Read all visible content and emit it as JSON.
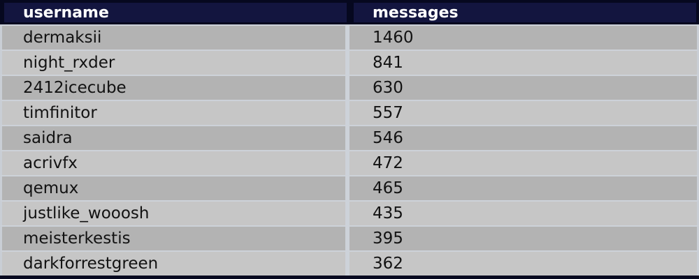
{
  "table": {
    "columns": [
      "username",
      "messages"
    ],
    "rows": [
      {
        "username": "dermaksii",
        "messages": "1460"
      },
      {
        "username": "night_rxder",
        "messages": "841"
      },
      {
        "username": "2412icecube",
        "messages": "630"
      },
      {
        "username": "timfinitor",
        "messages": "557"
      },
      {
        "username": "saidra",
        "messages": "546"
      },
      {
        "username": "acrivfx",
        "messages": "472"
      },
      {
        "username": "qemux",
        "messages": "465"
      },
      {
        "username": "justlike_wooosh",
        "messages": "435"
      },
      {
        "username": "meisterkestis",
        "messages": "395"
      },
      {
        "username": "darkforrestgreen",
        "messages": "362"
      }
    ]
  },
  "colors": {
    "header_bg": "#13153f",
    "header_border": "#06081f",
    "header_text": "#ffffff",
    "row_dark": "#b3b3b3",
    "row_light": "#c6c6c6",
    "separator": "#cdd2d9",
    "row_text": "#121212"
  },
  "chart_data": {
    "type": "table",
    "title": "",
    "columns": [
      "username",
      "messages"
    ],
    "rows": [
      [
        "dermaksii",
        1460
      ],
      [
        "night_rxder",
        841
      ],
      [
        "2412icecube",
        630
      ],
      [
        "timfinitor",
        557
      ],
      [
        "saidra",
        546
      ],
      [
        "acrivfx",
        472
      ],
      [
        "qemux",
        465
      ],
      [
        "justlike_wooosh",
        435
      ],
      [
        "meisterkestis",
        395
      ],
      [
        "darkforrestgreen",
        362
      ]
    ]
  }
}
